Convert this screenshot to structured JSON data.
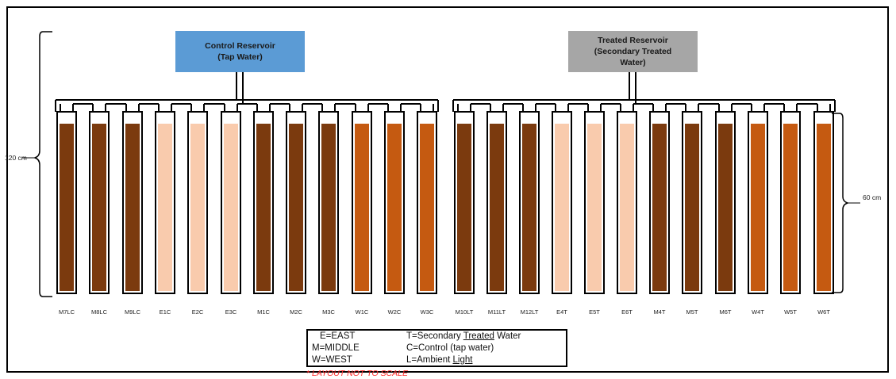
{
  "reservoirs": {
    "control": {
      "line1": "Control Reservoir",
      "line2": "(Tap Water)",
      "color": "#5b9bd5"
    },
    "treated": {
      "line1": "Treated Reservoir",
      "line2": "(Secondary Treated",
      "line3": "Water)",
      "color": "#a6a6a6"
    }
  },
  "dimensions": {
    "left": "120 cm",
    "right": "60 cm"
  },
  "colors": {
    "middle": "#7b3a0e",
    "east": "#f9cbad",
    "west": "#c55a11"
  },
  "columns": [
    {
      "label": "M7LC",
      "zone": "middle"
    },
    {
      "label": "M8LC",
      "zone": "middle"
    },
    {
      "label": "M9LC",
      "zone": "middle"
    },
    {
      "label": "E1C",
      "zone": "east"
    },
    {
      "label": "E2C",
      "zone": "east"
    },
    {
      "label": "E3C",
      "zone": "east"
    },
    {
      "label": "M1C",
      "zone": "middle"
    },
    {
      "label": "M2C",
      "zone": "middle"
    },
    {
      "label": "M3C",
      "zone": "middle"
    },
    {
      "label": "W1C",
      "zone": "west"
    },
    {
      "label": "W2C",
      "zone": "west"
    },
    {
      "label": "W3C",
      "zone": "west"
    },
    {
      "label": "M10LT",
      "zone": "middle"
    },
    {
      "label": "M11LT",
      "zone": "middle"
    },
    {
      "label": "M12LT",
      "zone": "middle"
    },
    {
      "label": "E4T",
      "zone": "east"
    },
    {
      "label": "E5T",
      "zone": "east"
    },
    {
      "label": "E6T",
      "zone": "east"
    },
    {
      "label": "M4T",
      "zone": "middle"
    },
    {
      "label": "M5T",
      "zone": "middle"
    },
    {
      "label": "M6T",
      "zone": "middle"
    },
    {
      "label": "W4T",
      "zone": "west"
    },
    {
      "label": "W5T",
      "zone": "west"
    },
    {
      "label": "W6T",
      "zone": "west"
    }
  ],
  "legend": {
    "east": "E=EAST",
    "middle": "M=MIDDLE",
    "west": "W=WEST",
    "treated_prefix": "T=Secondary ",
    "treated_underlined": "Treated",
    "treated_suffix": " Water",
    "control": "C=Control (tap water)",
    "light_prefix": "L=Ambient ",
    "light_underlined": "Light"
  },
  "note": "* LAYOUT NOT TO SCALE"
}
